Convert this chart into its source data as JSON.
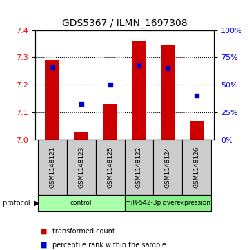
{
  "title": "GDS5367 / ILMN_1697308",
  "samples": [
    "GSM1148121",
    "GSM1148123",
    "GSM1148125",
    "GSM1148122",
    "GSM1148124",
    "GSM1148126"
  ],
  "bar_values": [
    7.29,
    7.03,
    7.13,
    7.36,
    7.345,
    7.07
  ],
  "bar_baseline": 7.0,
  "bar_color": "#cc0000",
  "percentile_values": [
    66,
    33,
    50,
    68,
    65,
    40
  ],
  "percentile_color": "#0000cc",
  "ylim_left": [
    7.0,
    7.4
  ],
  "ylim_right": [
    0,
    100
  ],
  "yticks_left": [
    7.0,
    7.1,
    7.2,
    7.3,
    7.4
  ],
  "yticks_right": [
    0,
    25,
    50,
    75,
    100
  ],
  "groups": [
    {
      "label": "control",
      "indices": [
        0,
        1,
        2
      ],
      "color": "#aaffaa"
    },
    {
      "label": "miR-542-3p overexpression",
      "indices": [
        3,
        4,
        5
      ],
      "color": "#88ee88"
    }
  ],
  "legend_items": [
    {
      "label": "transformed count",
      "color": "#cc0000",
      "marker": "s"
    },
    {
      "label": "percentile rank within the sample",
      "color": "#0000cc",
      "marker": "s"
    }
  ],
  "protocol_label": "protocol",
  "background_color": "#ffffff",
  "plot_bg_color": "#ffffff",
  "grid_color": "#000000",
  "sample_box_color": "#cccccc"
}
